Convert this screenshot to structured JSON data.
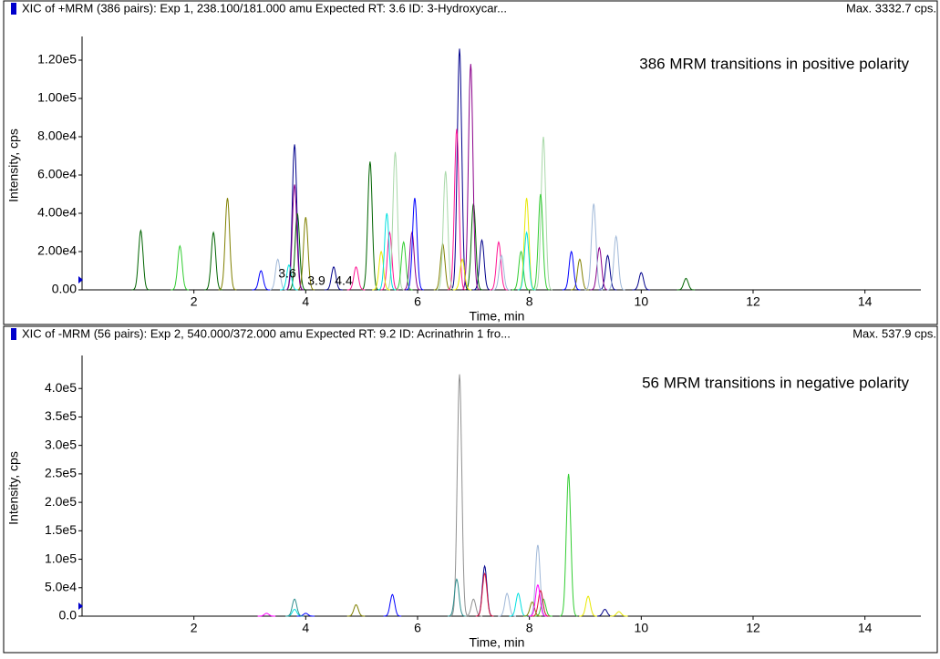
{
  "chart_data": [
    {
      "type": "chromatogram",
      "header": "XIC of +MRM (386 pairs): Exp 1, 238.100/181.000 amu Expected RT: 3.6 ID: 3-Hydroxycar...",
      "max_label": "Max. 3332.7 cps.",
      "annotation": "386 MRM transitions in positive polarity",
      "peak_labels": [
        "3.6",
        "3.9",
        "4.4"
      ],
      "x_label": "Time, min",
      "y_label": "Intensity, cps",
      "xlim": [
        0,
        15
      ],
      "xticks": [
        2,
        4,
        6,
        8,
        10,
        12,
        14
      ],
      "ylim": [
        0,
        130000
      ],
      "yticks": [
        {
          "value": 0,
          "label": "0.00"
        },
        {
          "value": 20000,
          "label": "2.00e4"
        },
        {
          "value": 40000,
          "label": "4.00e4"
        },
        {
          "value": 60000,
          "label": "6.00e4"
        },
        {
          "value": 80000,
          "label": "8.00e4"
        },
        {
          "value": 100000,
          "label": "1.00e5"
        },
        {
          "value": 120000,
          "label": "1.20e5"
        }
      ],
      "series": [
        {
          "color": "#00008b",
          "x": [
            3.8,
            6.75,
            4.5,
            7.15,
            10.0,
            9.4
          ],
          "values": [
            76000,
            126000,
            12000,
            26000,
            9000,
            18000
          ]
        },
        {
          "color": "#006400",
          "x": [
            1.05,
            2.35,
            5.15,
            3.85,
            7.0,
            10.8
          ],
          "values": [
            31000,
            30000,
            67000,
            40000,
            45000,
            6000
          ]
        },
        {
          "color": "#808000",
          "x": [
            2.6,
            4.0,
            6.45,
            8.9
          ],
          "values": [
            48000,
            38000,
            24000,
            16000
          ]
        },
        {
          "color": "#8b008b",
          "x": [
            6.95,
            3.8,
            5.9,
            9.25
          ],
          "values": [
            118000,
            55000,
            30000,
            22000
          ]
        },
        {
          "color": "#ff1493",
          "x": [
            6.7,
            5.5,
            7.45,
            4.9
          ],
          "values": [
            84000,
            30000,
            25000,
            12000
          ]
        },
        {
          "color": "#a8d8a8",
          "x": [
            8.25,
            5.6,
            6.5
          ],
          "values": [
            80000,
            72000,
            62000
          ]
        },
        {
          "color": "#a0b8d8",
          "x": [
            9.15,
            9.55,
            3.5,
            7.5
          ],
          "values": [
            45000,
            28000,
            16000,
            18000
          ]
        },
        {
          "color": "#32cd32",
          "x": [
            8.2,
            5.75,
            1.75,
            7.85
          ],
          "values": [
            50000,
            25000,
            23000,
            20000
          ]
        },
        {
          "color": "#e8e800",
          "x": [
            7.95,
            5.35,
            6.8
          ],
          "values": [
            48000,
            20000,
            16000
          ]
        },
        {
          "color": "#00e0e0",
          "x": [
            5.45,
            7.95,
            3.7
          ],
          "values": [
            40000,
            30000,
            13000
          ]
        },
        {
          "color": "#0000ff",
          "x": [
            5.95,
            8.75,
            3.2
          ],
          "values": [
            48000,
            20000,
            10000
          ]
        }
      ]
    },
    {
      "type": "chromatogram",
      "header": "XIC of -MRM (56 pairs): Exp 2, 540.000/372.000 amu Expected RT: 9.2 ID: Acrinathrin 1 fro...",
      "max_label": "Max. 537.9 cps.",
      "annotation": "56 MRM transitions in negative polarity",
      "x_label": "Time, min",
      "y_label": "Intensity, cps",
      "xlim": [
        0,
        15
      ],
      "xticks": [
        2,
        4,
        6,
        8,
        10,
        12,
        14
      ],
      "ylim": [
        0,
        450000
      ],
      "yticks": [
        {
          "value": 0,
          "label": "0.0"
        },
        {
          "value": 50000,
          "label": "5.0e4"
        },
        {
          "value": 100000,
          "label": "1.0e5"
        },
        {
          "value": 150000,
          "label": "1.5e5"
        },
        {
          "value": 200000,
          "label": "2.0e5"
        },
        {
          "value": 250000,
          "label": "2.5e5"
        },
        {
          "value": 300000,
          "label": "3.0e5"
        },
        {
          "value": 350000,
          "label": "3.5e5"
        },
        {
          "value": 400000,
          "label": "4.0e5"
        }
      ],
      "series": [
        {
          "color": "#909090",
          "x": [
            6.75,
            7.0
          ],
          "values": [
            425000,
            30000
          ]
        },
        {
          "color": "#32cd32",
          "x": [
            8.7,
            8.25
          ],
          "values": [
            250000,
            30000
          ]
        },
        {
          "color": "#a0b8d8",
          "x": [
            8.15,
            7.6
          ],
          "values": [
            125000,
            40000
          ]
        },
        {
          "color": "#00008b",
          "x": [
            7.2,
            9.35
          ],
          "values": [
            88000,
            12000
          ]
        },
        {
          "color": "#dc143c",
          "x": [
            7.2,
            8.2
          ],
          "values": [
            75000,
            45000
          ]
        },
        {
          "color": "#00e0e0",
          "x": [
            7.8,
            3.8
          ],
          "values": [
            40000,
            12000
          ]
        },
        {
          "color": "#0000ff",
          "x": [
            5.55,
            4.0
          ],
          "values": [
            38000,
            5000
          ]
        },
        {
          "color": "#2f8f8f",
          "x": [
            3.8,
            6.7
          ],
          "values": [
            30000,
            65000
          ]
        },
        {
          "color": "#808000",
          "x": [
            4.9,
            8.05
          ],
          "values": [
            20000,
            25000
          ]
        },
        {
          "color": "#ff00ff",
          "x": [
            8.15,
            3.3
          ],
          "values": [
            55000,
            5000
          ]
        },
        {
          "color": "#e8e800",
          "x": [
            9.05,
            9.6
          ],
          "values": [
            35000,
            8000
          ]
        }
      ]
    }
  ]
}
